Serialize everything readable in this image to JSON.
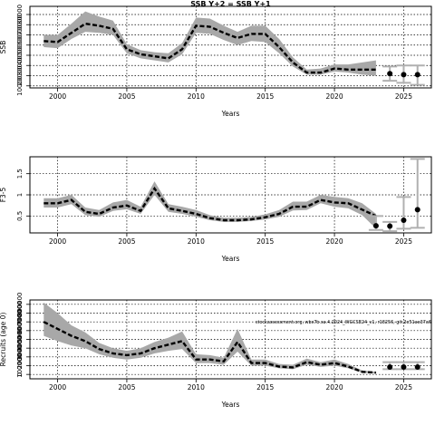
{
  "chart_data": [
    {
      "type": "line",
      "title": "SSB Y+2 = SSB Y+1",
      "xlabel": "Years",
      "ylabel": "SSB",
      "xlim": [
        1998,
        2027
      ],
      "ylim": [
        8000,
        88000
      ],
      "x_ticks": [
        2000,
        2005,
        2010,
        2015,
        2020,
        2025
      ],
      "y_ticks": [
        10000,
        20000,
        30000,
        40000,
        50000,
        60000,
        70000,
        80000
      ],
      "y_tick_labels": [
        "10000",
        "20000",
        "30000",
        "40000",
        "50000",
        "60000",
        "70000",
        "80000"
      ],
      "grid": true,
      "series": [
        {
          "kind": "estimate_with_band",
          "x": [
            1999,
            2000,
            2001,
            2002,
            2003,
            2004,
            2005,
            2006,
            2007,
            2008,
            2009,
            2010,
            2011,
            2012,
            2013,
            2014,
            2015,
            2016,
            2017,
            2018,
            2019,
            2020,
            2021,
            2022,
            2023
          ],
          "y": [
            54000,
            53000,
            62000,
            71000,
            69000,
            66000,
            46000,
            41000,
            39000,
            37000,
            46000,
            69000,
            68000,
            62000,
            57000,
            61000,
            61000,
            48000,
            33000,
            23000,
            23000,
            27000,
            26000,
            26000,
            26000
          ],
          "lower": [
            48000,
            47000,
            56000,
            63000,
            62000,
            60000,
            42000,
            37000,
            35000,
            33000,
            41000,
            62000,
            61000,
            55000,
            50000,
            54000,
            53000,
            42000,
            29000,
            21000,
            21000,
            24000,
            23000,
            21000,
            20000
          ],
          "upper": [
            60000,
            60000,
            71000,
            83000,
            78000,
            74000,
            51000,
            45000,
            43000,
            42000,
            52000,
            77000,
            76000,
            69000,
            63000,
            69000,
            69000,
            56000,
            38000,
            26000,
            27000,
            31000,
            31000,
            33000,
            35000
          ]
        },
        {
          "kind": "projection_points",
          "x": [
            2024,
            2025,
            2026
          ],
          "y": [
            22000,
            21000,
            21000
          ],
          "lower": [
            15000,
            13000,
            11000
          ],
          "upper": [
            29000,
            30000,
            30000
          ]
        }
      ]
    },
    {
      "type": "line",
      "title": "",
      "xlabel": "Years",
      "ylabel": "F3-5",
      "xlim": [
        1998,
        2027
      ],
      "ylim": [
        0.1,
        1.9
      ],
      "x_ticks": [
        2000,
        2005,
        2010,
        2015,
        2020,
        2025
      ],
      "y_ticks": [
        0.5,
        1.0,
        1.5
      ],
      "y_tick_labels": [
        "0.5",
        "1",
        "1.5"
      ],
      "grid": true,
      "series": [
        {
          "kind": "estimate_with_band",
          "x": [
            1999,
            2000,
            2001,
            2002,
            2003,
            2004,
            2005,
            2006,
            2007,
            2008,
            2009,
            2010,
            2011,
            2012,
            2013,
            2014,
            2015,
            2016,
            2017,
            2018,
            2019,
            2020,
            2021,
            2022,
            2023
          ],
          "y": [
            0.8,
            0.8,
            0.88,
            0.6,
            0.55,
            0.7,
            0.75,
            0.62,
            1.15,
            0.68,
            0.62,
            0.55,
            0.45,
            0.4,
            0.4,
            0.42,
            0.47,
            0.55,
            0.72,
            0.72,
            0.88,
            0.82,
            0.8,
            0.65,
            0.5
          ],
          "lower": [
            0.7,
            0.7,
            0.78,
            0.52,
            0.48,
            0.62,
            0.66,
            0.55,
            1.0,
            0.6,
            0.55,
            0.48,
            0.4,
            0.36,
            0.36,
            0.38,
            0.42,
            0.48,
            0.63,
            0.64,
            0.8,
            0.72,
            0.68,
            0.52,
            0.2
          ],
          "upper": [
            0.92,
            0.92,
            1.0,
            0.7,
            0.64,
            0.82,
            0.88,
            0.72,
            1.32,
            0.78,
            0.72,
            0.64,
            0.52,
            0.46,
            0.46,
            0.48,
            0.54,
            0.64,
            0.84,
            0.84,
            1.0,
            0.95,
            0.92,
            0.8,
            0.55
          ]
        },
        {
          "kind": "projection_points",
          "x": [
            2023,
            2024,
            2025,
            2026
          ],
          "y": [
            0.27,
            0.26,
            0.4,
            0.65
          ],
          "lower": [
            0.17,
            0.14,
            0.2,
            0.22
          ],
          "upper": [
            0.5,
            0.36,
            0.95,
            1.85
          ]
        }
      ]
    },
    {
      "type": "line",
      "title": "",
      "xlabel": "Years",
      "ylabel": "Recruits (age 0)",
      "xlim": [
        1998,
        2027
      ],
      "ylim": [
        -50000,
        850000
      ],
      "x_ticks": [
        2000,
        2005,
        2010,
        2015,
        2020,
        2025
      ],
      "y_ticks": [
        0,
        100000,
        200000,
        300000,
        400000,
        500000,
        600000,
        700000,
        800000
      ],
      "y_tick_labels": [
        "0",
        "100000",
        "200000",
        "300000",
        "400000",
        "500000",
        "600000",
        "700000",
        "800000"
      ],
      "grid": true,
      "annotation": "stockassessment.org, wbs7b.sa.4.2024_WGCSE24_v1, r18256, git:2e51ae37a6",
      "series": [
        {
          "kind": "estimate_with_band",
          "x": [
            1999,
            2000,
            2001,
            2002,
            2003,
            2004,
            2005,
            2006,
            2007,
            2008,
            2009,
            2010,
            2011,
            2012,
            2013,
            2014,
            2015,
            2016,
            2017,
            2018,
            2019,
            2020,
            2021,
            2022,
            2023
          ],
          "y": [
            600000,
            520000,
            440000,
            380000,
            290000,
            240000,
            220000,
            240000,
            300000,
            340000,
            380000,
            170000,
            170000,
            150000,
            370000,
            130000,
            130000,
            90000,
            80000,
            140000,
            110000,
            130000,
            90000,
            30000,
            20000
          ],
          "lower": [
            440000,
            380000,
            330000,
            300000,
            230000,
            190000,
            170000,
            190000,
            240000,
            270000,
            290000,
            130000,
            130000,
            110000,
            260000,
            100000,
            100000,
            70000,
            60000,
            110000,
            85000,
            100000,
            70000,
            20000,
            10000
          ],
          "upper": [
            820000,
            700000,
            560000,
            480000,
            360000,
            300000,
            270000,
            300000,
            370000,
            420000,
            490000,
            230000,
            220000,
            190000,
            520000,
            170000,
            170000,
            120000,
            110000,
            180000,
            140000,
            170000,
            120000,
            45000,
            30000
          ]
        },
        {
          "kind": "projection_points",
          "x": [
            2024,
            2025,
            2026
          ],
          "y": [
            85000,
            85000,
            85000
          ],
          "lower": [
            60000,
            60000,
            60000
          ],
          "upper": [
            140000,
            140000,
            140000
          ]
        }
      ]
    }
  ]
}
